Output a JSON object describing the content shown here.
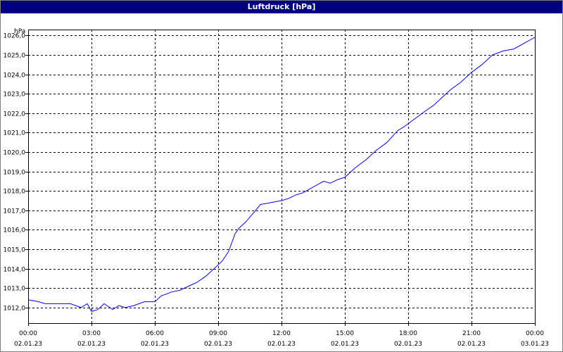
{
  "window": {
    "title": "Luftdruck [hPa]",
    "title_bg": "#00007f",
    "title_fg": "#ffffff"
  },
  "chart_data": {
    "type": "line",
    "title": "Luftdruck [hPa]",
    "ylabel": "hPa",
    "xlabel": "",
    "ylim": [
      1011.2,
      1026.3
    ],
    "xlim_hours": [
      0,
      24
    ],
    "grid": true,
    "line_color": "#0000ff",
    "y_ticks": [
      "1012,0",
      "1013,0",
      "1014,0",
      "1015,0",
      "1016,0",
      "1017,0",
      "1018,0",
      "1019,0",
      "1020,0",
      "1021,0",
      "1022,0",
      "1023,0",
      "1024,0",
      "1025,0",
      "1026,0"
    ],
    "y_tick_values": [
      1012,
      1013,
      1014,
      1015,
      1016,
      1017,
      1018,
      1019,
      1020,
      1021,
      1022,
      1023,
      1024,
      1025,
      1026
    ],
    "x_ticks": [
      {
        "time": "00:00",
        "date": "02.01.23"
      },
      {
        "time": "03:00",
        "date": "02.01.23"
      },
      {
        "time": "06:00",
        "date": "02.01.23"
      },
      {
        "time": "09:00",
        "date": "02.01.23"
      },
      {
        "time": "12:00",
        "date": "02.01.23"
      },
      {
        "time": "15:00",
        "date": "02.01.23"
      },
      {
        "time": "18:00",
        "date": "02.01.23"
      },
      {
        "time": "21:00",
        "date": "02.01.23"
      },
      {
        "time": "00:00",
        "date": "03.01.23"
      }
    ],
    "series": [
      {
        "x_hours": [
          0,
          0.5,
          0.8,
          1.2,
          2.0,
          2.5,
          2.8,
          3.0,
          3.3,
          3.6,
          4.0,
          4.3,
          4.6,
          5.0,
          5.5,
          6.0,
          6.3,
          6.8,
          7.2,
          7.6,
          8.0,
          8.4,
          8.8,
          9.2,
          9.5,
          9.8,
          10.0,
          10.3,
          10.7,
          11.0,
          11.5,
          12.0,
          12.3,
          12.7,
          13.0,
          13.5,
          14.0,
          14.3,
          14.7,
          15.0,
          15.5,
          16.0,
          16.5,
          17.0,
          17.5,
          17.8,
          18.3,
          18.8,
          19.2,
          19.7,
          20.0,
          20.5,
          21.0,
          21.5,
          22.0,
          22.5,
          23.0,
          23.5,
          24.0
        ],
        "values": [
          1012.4,
          1012.3,
          1012.2,
          1012.2,
          1012.2,
          1012.0,
          1012.2,
          1011.8,
          1011.9,
          1012.2,
          1011.9,
          1012.1,
          1012.0,
          1012.1,
          1012.3,
          1012.3,
          1012.6,
          1012.8,
          1012.9,
          1013.1,
          1013.3,
          1013.6,
          1014.0,
          1014.4,
          1014.9,
          1015.8,
          1016.1,
          1016.4,
          1016.9,
          1017.3,
          1017.4,
          1017.5,
          1017.6,
          1017.8,
          1017.9,
          1018.2,
          1018.5,
          1018.4,
          1018.6,
          1018.7,
          1019.2,
          1019.6,
          1020.1,
          1020.5,
          1021.1,
          1021.3,
          1021.7,
          1022.1,
          1022.4,
          1022.9,
          1023.2,
          1023.6,
          1024.1,
          1024.5,
          1025.0,
          1025.2,
          1025.3,
          1025.6,
          1025.9
        ]
      }
    ]
  }
}
